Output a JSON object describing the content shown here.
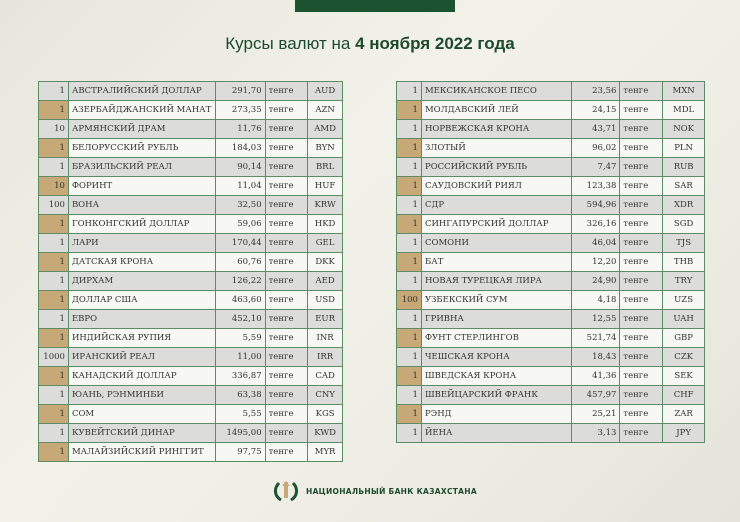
{
  "header": {
    "title_prefix": "Курсы валют на ",
    "title_date": "4 ноября 2022 года"
  },
  "colors": {
    "brand_green": "#1d5231",
    "accent_tan": "#c6a977",
    "row_gray": "#dcdcda",
    "border": "#5e8a66"
  },
  "left_table": [
    {
      "qty": "1",
      "name": "АВСТРАЛИЙСКИЙ ДОЛЛАР",
      "rate": "291,70",
      "unit": "тенге",
      "code": "AUD"
    },
    {
      "qty": "1",
      "name": "АЗЕРБАЙДЖАНСКИЙ МАНАТ",
      "rate": "273,35",
      "unit": "тенге",
      "code": "AZN"
    },
    {
      "qty": "10",
      "name": "АРМЯНСКИЙ  ДРАМ",
      "rate": "11,76",
      "unit": "тенге",
      "code": "AMD"
    },
    {
      "qty": "1",
      "name": "БЕЛОРУССКИЙ РУБЛЬ",
      "rate": "184,03",
      "unit": "тенге",
      "code": "BYN"
    },
    {
      "qty": "1",
      "name": "БРАЗИЛЬСКИЙ РЕАЛ",
      "rate": "90,14",
      "unit": "тенге",
      "code": "BRL"
    },
    {
      "qty": "10",
      "name": "ФОРИНТ",
      "rate": "11,04",
      "unit": "тенге",
      "code": "HUF"
    },
    {
      "qty": "100",
      "name": "ВОНА",
      "rate": "32,50",
      "unit": "тенге",
      "code": "KRW"
    },
    {
      "qty": "1",
      "name": "ГОНКОНГСКИЙ ДОЛЛАР",
      "rate": "59,06",
      "unit": "тенге",
      "code": "HKD"
    },
    {
      "qty": "1",
      "name": "ЛАРИ",
      "rate": "170,44",
      "unit": "тенге",
      "code": "GEL"
    },
    {
      "qty": "1",
      "name": "ДАТСКАЯ КРОНА",
      "rate": "60,76",
      "unit": "тенге",
      "code": "DKK"
    },
    {
      "qty": "1",
      "name": "ДИРХАМ",
      "rate": "126,22",
      "unit": "тенге",
      "code": "AED"
    },
    {
      "qty": "1",
      "name": "ДОЛЛАР США",
      "rate": "463,60",
      "unit": "тенге",
      "code": "USD"
    },
    {
      "qty": "1",
      "name": "ЕВРО",
      "rate": "452,10",
      "unit": "тенге",
      "code": "EUR"
    },
    {
      "qty": "1",
      "name": "ИНДИЙСКАЯ РУПИЯ",
      "rate": "5,59",
      "unit": "тенге",
      "code": "INR"
    },
    {
      "qty": "1000",
      "name": "ИРАНСКИЙ РЕАЛ",
      "rate": "11,00",
      "unit": "тенге",
      "code": "IRR"
    },
    {
      "qty": "1",
      "name": "КАНАДСКИЙ ДОЛЛАР",
      "rate": "336,87",
      "unit": "тенге",
      "code": "CAD"
    },
    {
      "qty": "1",
      "name": "ЮАНЬ, РЭНМИНБИ",
      "rate": "63,38",
      "unit": "тенге",
      "code": "CNY"
    },
    {
      "qty": "1",
      "name": "СОМ",
      "rate": "5,55",
      "unit": "тенге",
      "code": "KGS"
    },
    {
      "qty": "1",
      "name": "КУВЕЙТСКИЙ ДИНАР",
      "rate": "1495,00",
      "unit": "тенге",
      "code": "KWD"
    },
    {
      "qty": "1",
      "name": "МАЛАЙЗИЙСКИЙ РИНГГИТ",
      "rate": "97,75",
      "unit": "тенге",
      "code": "MYR"
    }
  ],
  "right_table": [
    {
      "qty": "1",
      "name": "МЕКСИКАНСКОЕ ПЕСО",
      "rate": "23,56",
      "unit": "тенге",
      "code": "MXN"
    },
    {
      "qty": "1",
      "name": "МОЛДАВСКИЙ ЛЕЙ",
      "rate": "24,15",
      "unit": "тенге",
      "code": "MDL"
    },
    {
      "qty": "1",
      "name": "НОРВЕЖСКАЯ КРОНА",
      "rate": "43,71",
      "unit": "тенге",
      "code": "NOK"
    },
    {
      "qty": "1",
      "name": "ЗЛОТЫЙ",
      "rate": "96,02",
      "unit": "тенге",
      "code": "PLN"
    },
    {
      "qty": "1",
      "name": "РОССИЙСКИЙ РУБЛЬ",
      "rate": "7,47",
      "unit": "тенге",
      "code": "RUB"
    },
    {
      "qty": "1",
      "name": "САУДОВСКИЙ РИЯЛ",
      "rate": "123,38",
      "unit": "тенге",
      "code": "SAR"
    },
    {
      "qty": "1",
      "name": "СДР",
      "rate": "594,96",
      "unit": "тенге",
      "code": "XDR"
    },
    {
      "qty": "1",
      "name": "СИНГАПУРСКИЙ ДОЛЛАР",
      "rate": "326,16",
      "unit": "тенге",
      "code": "SGD"
    },
    {
      "qty": "1",
      "name": "СОМОНИ",
      "rate": "46,04",
      "unit": "тенге",
      "code": "TJS"
    },
    {
      "qty": "1",
      "name": "БАТ",
      "rate": "12,20",
      "unit": "тенге",
      "code": "THB"
    },
    {
      "qty": "1",
      "name": "НОВАЯ ТУРЕЦКАЯ ЛИРА",
      "rate": "24,90",
      "unit": "тенге",
      "code": "TRY"
    },
    {
      "qty": "100",
      "name": "УЗБЕКСКИЙ СУМ",
      "rate": "4,18",
      "unit": "тенге",
      "code": "UZS"
    },
    {
      "qty": "1",
      "name": "ГРИВНА",
      "rate": "12,55",
      "unit": "тенге",
      "code": "UAH"
    },
    {
      "qty": "1",
      "name": "ФУНТ СТЕРЛИНГОВ",
      "rate": "521,74",
      "unit": "тенге",
      "code": "GBP"
    },
    {
      "qty": "1",
      "name": "ЧЕШСКАЯ КРОНА",
      "rate": "18,43",
      "unit": "тенге",
      "code": "CZK"
    },
    {
      "qty": "1",
      "name": "ШВЕДСКАЯ КРОНА",
      "rate": "41,36",
      "unit": "тенге",
      "code": "SEK"
    },
    {
      "qty": "1",
      "name": "ШВЕЙЦАРСКИЙ ФРАНК",
      "rate": "457,97",
      "unit": "тенге",
      "code": "CHF"
    },
    {
      "qty": "1",
      "name": "РЭНД",
      "rate": "25,21",
      "unit": "тенге",
      "code": "ZAR"
    },
    {
      "qty": "1",
      "name": "ЙЕНА",
      "rate": "3,13",
      "unit": "тенге",
      "code": "JPY"
    }
  ],
  "footer": {
    "bank_name": "НАЦИОНАЛЬНЫЙ БАНК КАЗАХСТАНА",
    "logo_icon": "national-bank-emblem"
  }
}
